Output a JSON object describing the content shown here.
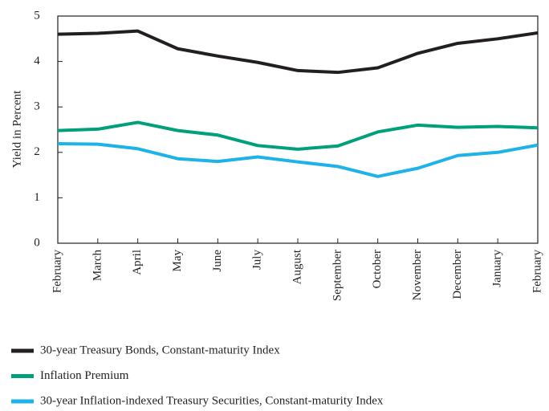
{
  "chart_data": {
    "type": "line",
    "y_label": "Yield in Percent",
    "categories": [
      "February",
      "March",
      "April",
      "May",
      "June",
      "July",
      "August",
      "September",
      "October",
      "November",
      "December",
      "January",
      "February"
    ],
    "ylim": [
      0,
      5
    ],
    "yticks": [
      0,
      1,
      2,
      3,
      4,
      5
    ],
    "series": [
      {
        "name": "30-year Treasury Bonds, Constant-maturity Index",
        "color": "#231f20",
        "values": [
          4.6,
          4.62,
          4.67,
          4.28,
          4.12,
          3.98,
          3.8,
          3.76,
          3.86,
          4.18,
          4.4,
          4.5,
          4.63
        ]
      },
      {
        "name": "Inflation Premium",
        "color": "#00a07a",
        "values": [
          2.48,
          2.51,
          2.66,
          2.48,
          2.38,
          2.15,
          2.07,
          2.14,
          2.45,
          2.6,
          2.55,
          2.57,
          2.54
        ]
      },
      {
        "name": "30-year Inflation-indexed Treasury Securities, Constant-maturity Index",
        "color": "#1eb3e8",
        "values": [
          2.19,
          2.18,
          2.08,
          1.86,
          1.8,
          1.9,
          1.79,
          1.69,
          1.47,
          1.65,
          1.93,
          2.0,
          2.16
        ]
      }
    ]
  }
}
